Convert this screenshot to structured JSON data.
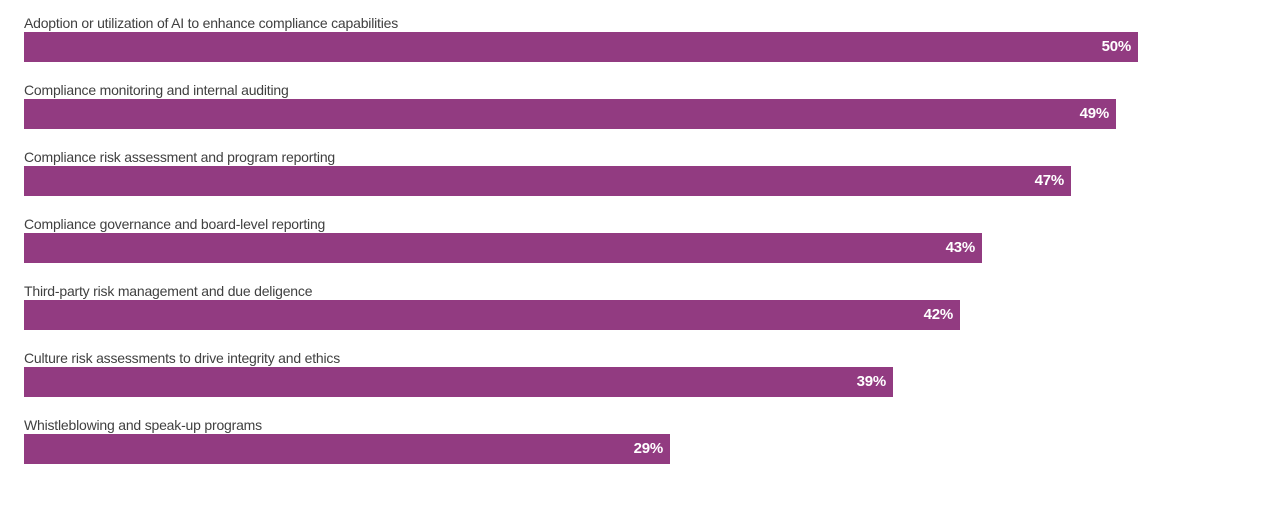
{
  "colors": {
    "bar_fill": "#923B81",
    "value_label": "#ffffff",
    "category_label": "#404040",
    "background": "#ffffff"
  },
  "chart_data": {
    "type": "bar",
    "orientation": "horizontal",
    "title": "",
    "xlabel": "",
    "ylabel": "",
    "value_suffix": "%",
    "xlim": [
      0,
      55
    ],
    "grid": false,
    "legend": false,
    "categories": [
      "Adoption or utilization of AI to enhance compliance capabilities",
      "Compliance monitoring and internal auditing",
      "Compliance risk assessment and program reporting",
      "Compliance governance and board-level reporting",
      "Third-party risk management and due deligence",
      "Culture risk assessments to drive integrity and ethics",
      "Whistleblowing and speak-up programs"
    ],
    "values": [
      50,
      49,
      47,
      43,
      42,
      39,
      29
    ],
    "value_labels": [
      "50%",
      "49%",
      "47%",
      "43%",
      "42%",
      "39%",
      "29%"
    ]
  }
}
